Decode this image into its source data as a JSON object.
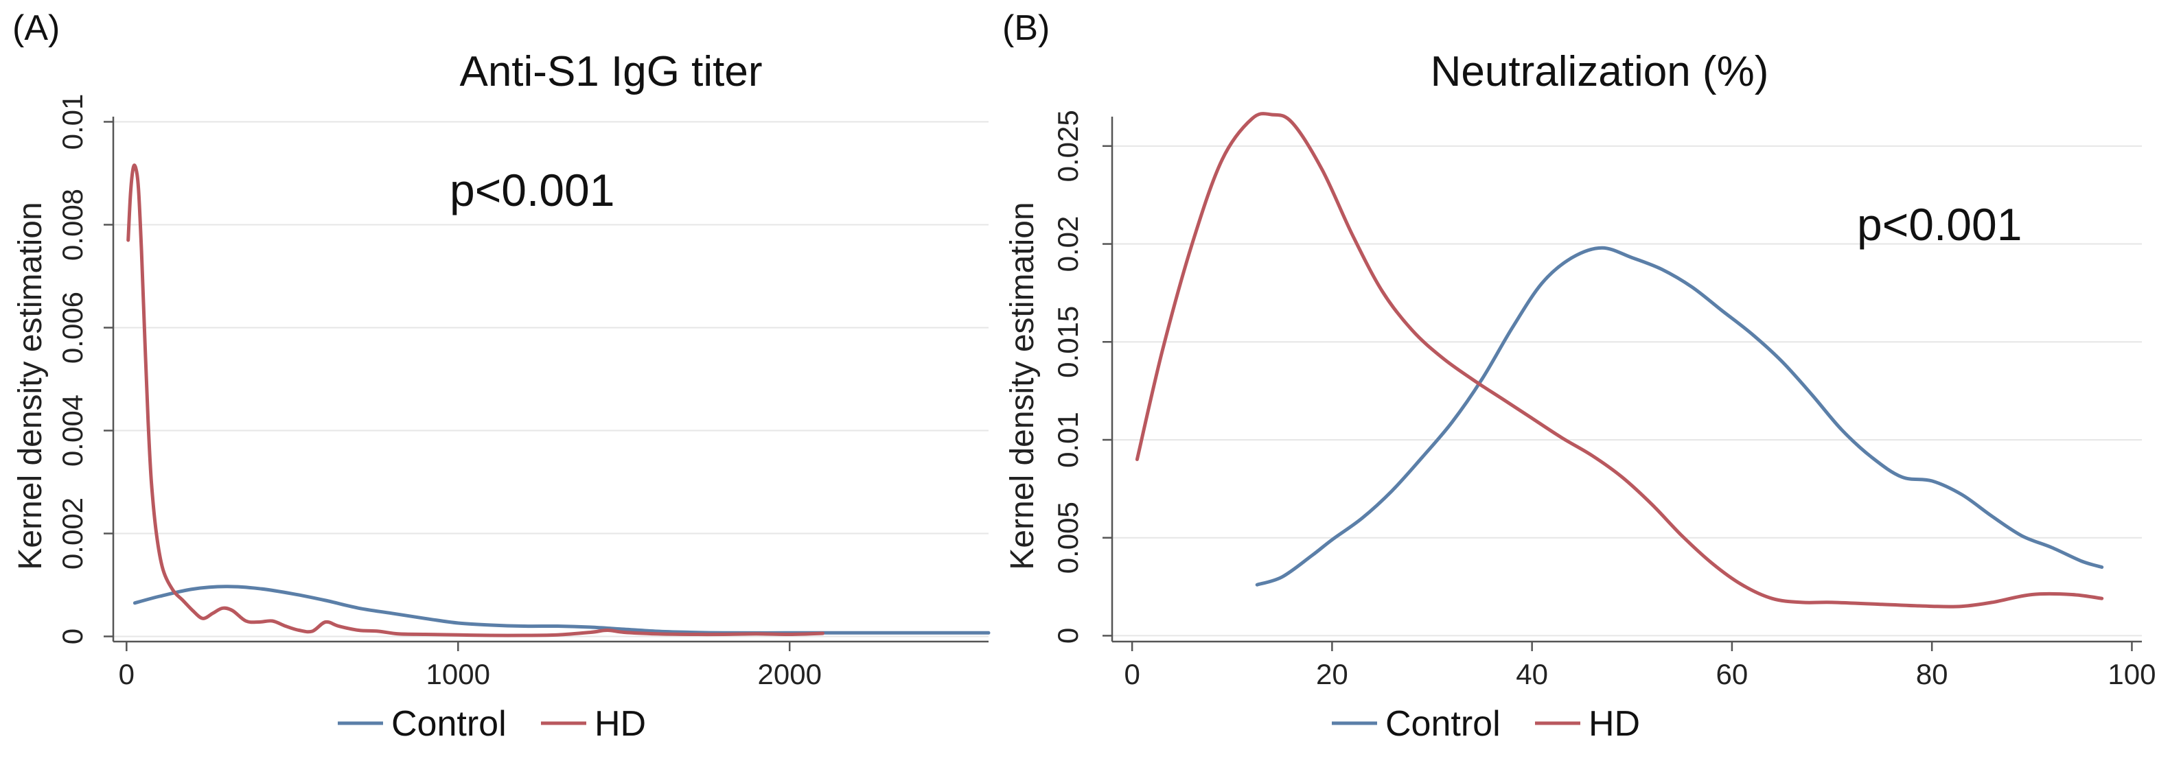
{
  "colors": {
    "control": "#5b7fa8",
    "hd": "#b9585e"
  },
  "chart_data": [
    {
      "type": "line",
      "panel_label": "(A)",
      "title": "Anti-S1 IgG titer",
      "xlabel": "",
      "ylabel": "Kernel density estimation",
      "xlim": [
        -40,
        2600
      ],
      "ylim": [
        -0.0001,
        0.0101
      ],
      "xticks": [
        0,
        1000,
        2000
      ],
      "xtick_labels": [
        "0",
        "1000",
        "2000"
      ],
      "yticks": [
        0,
        0.002,
        0.004,
        0.006,
        0.008,
        0.01
      ],
      "ytick_labels": [
        "0",
        "0.002",
        "0.004",
        "0.006",
        "0.008",
        "0.01"
      ],
      "annotation": "p<0.001",
      "legend": {
        "placement": "bottom-center",
        "entries": [
          "Control",
          "HD"
        ]
      },
      "series": [
        {
          "name": "Control",
          "color_key": "control",
          "x": [
            25,
            100,
            200,
            300,
            400,
            500,
            600,
            700,
            800,
            900,
            1000,
            1100,
            1200,
            1300,
            1400,
            1500,
            1600,
            1700,
            1800,
            2000,
            2200,
            2400,
            2600
          ],
          "y": [
            0.00065,
            0.00078,
            0.00092,
            0.00097,
            0.00093,
            0.00083,
            0.0007,
            0.00055,
            0.00045,
            0.00035,
            0.00026,
            0.00022,
            0.0002,
            0.0002,
            0.00018,
            0.00014,
            0.0001,
            8e-05,
            7e-05,
            7e-05,
            7e-05,
            7e-05,
            7e-05
          ]
        },
        {
          "name": "HD",
          "color_key": "hd",
          "x": [
            5,
            12,
            20,
            28,
            36,
            45,
            55,
            65,
            75,
            90,
            110,
            140,
            170,
            200,
            230,
            260,
            290,
            320,
            360,
            400,
            440,
            480,
            520,
            560,
            600,
            640,
            700,
            760,
            820,
            900,
            1000,
            1100,
            1200,
            1300,
            1400,
            1450,
            1500,
            1600,
            1700,
            1800,
            1900,
            2000,
            2100
          ],
          "y": [
            0.0077,
            0.0086,
            0.0091,
            0.0091,
            0.0087,
            0.0075,
            0.0058,
            0.0042,
            0.003,
            0.002,
            0.0013,
            0.0009,
            0.0007,
            0.0005,
            0.00035,
            0.00045,
            0.00055,
            0.0005,
            0.0003,
            0.00028,
            0.0003,
            0.0002,
            0.00012,
            0.0001,
            0.00028,
            0.0002,
            0.00012,
            0.0001,
            5e-05,
            4e-05,
            3e-05,
            2e-05,
            2e-05,
            3e-05,
            8e-05,
            0.00012,
            8e-05,
            5e-05,
            4e-05,
            4e-05,
            5e-05,
            4e-05,
            6e-05
          ]
        }
      ]
    },
    {
      "type": "line",
      "panel_label": "(B)",
      "title": "Neutralization (%)",
      "xlabel": "",
      "ylabel": "Kernel density estimation",
      "xlim": [
        -2,
        101
      ],
      "ylim": [
        -0.0003,
        0.0265
      ],
      "xticks": [
        0,
        20,
        40,
        60,
        80,
        100
      ],
      "xtick_labels": [
        "0",
        "20",
        "40",
        "60",
        "80",
        "100"
      ],
      "yticks": [
        0,
        0.005,
        0.01,
        0.015,
        0.02,
        0.025
      ],
      "ytick_labels": [
        "0",
        "0.005",
        "0.01",
        "0.015",
        "0.02",
        "0.025"
      ],
      "annotation": "p<0.001",
      "legend": {
        "placement": "bottom-center",
        "entries": [
          "Control",
          "HD"
        ]
      },
      "series": [
        {
          "name": "Control",
          "color_key": "control",
          "x": [
            12.5,
            15,
            18,
            20,
            23,
            26,
            29,
            32,
            35,
            38,
            41,
            44,
            47,
            50,
            53,
            56,
            59,
            62,
            65,
            68,
            71,
            74,
            77,
            80,
            83,
            86,
            89,
            92,
            95,
            97
          ],
          "y": [
            0.0026,
            0.003,
            0.0041,
            0.0049,
            0.006,
            0.0074,
            0.0091,
            0.0109,
            0.0131,
            0.0157,
            0.018,
            0.0193,
            0.0198,
            0.0193,
            0.0187,
            0.0178,
            0.0166,
            0.0154,
            0.014,
            0.0123,
            0.0105,
            0.0091,
            0.0081,
            0.0079,
            0.0072,
            0.0061,
            0.0051,
            0.0045,
            0.0038,
            0.0035
          ]
        },
        {
          "name": "HD",
          "color_key": "hd",
          "x": [
            0.5,
            3,
            6,
            9,
            12,
            14,
            16,
            19,
            22,
            25,
            28,
            31,
            34,
            37,
            40,
            43,
            46,
            49,
            52,
            55,
            58,
            61,
            64,
            67,
            70,
            75,
            80,
            83,
            86,
            90,
            94,
            97
          ],
          "y": [
            0.009,
            0.0145,
            0.02,
            0.0243,
            0.0264,
            0.0266,
            0.0262,
            0.0238,
            0.0205,
            0.0176,
            0.0156,
            0.0142,
            0.0131,
            0.0121,
            0.0111,
            0.0101,
            0.0092,
            0.0081,
            0.0067,
            0.0051,
            0.0037,
            0.0026,
            0.0019,
            0.0017,
            0.0017,
            0.0016,
            0.0015,
            0.0015,
            0.0017,
            0.0021,
            0.0021,
            0.0019
          ]
        }
      ]
    }
  ]
}
